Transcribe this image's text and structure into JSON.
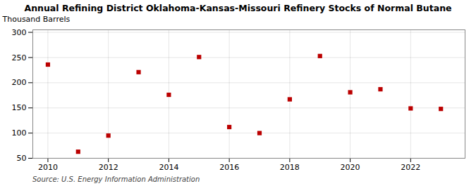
{
  "chart_data": {
    "type": "scatter",
    "title": "Annual Refining District Oklahoma-Kansas-Missouri Refinery Stocks of Normal Butane",
    "ylabel": "Thousand Barrels",
    "source": "Source: U.S. Energy Information Administration",
    "x": [
      2010,
      2011,
      2012,
      2013,
      2014,
      2015,
      2016,
      2017,
      2018,
      2019,
      2020,
      2021,
      2022,
      2023
    ],
    "values": [
      236,
      63,
      95,
      221,
      176,
      251,
      112,
      100,
      167,
      253,
      181,
      187,
      149,
      148
    ],
    "color": "#bb0000",
    "marker": "square",
    "xlim": [
      2009.5,
      2023.8
    ],
    "ylim": [
      50,
      305
    ],
    "xticks": [
      2010,
      2012,
      2014,
      2016,
      2018,
      2020,
      2022
    ],
    "yticks": [
      50,
      100,
      150,
      200,
      250,
      300
    ],
    "grid": true
  }
}
